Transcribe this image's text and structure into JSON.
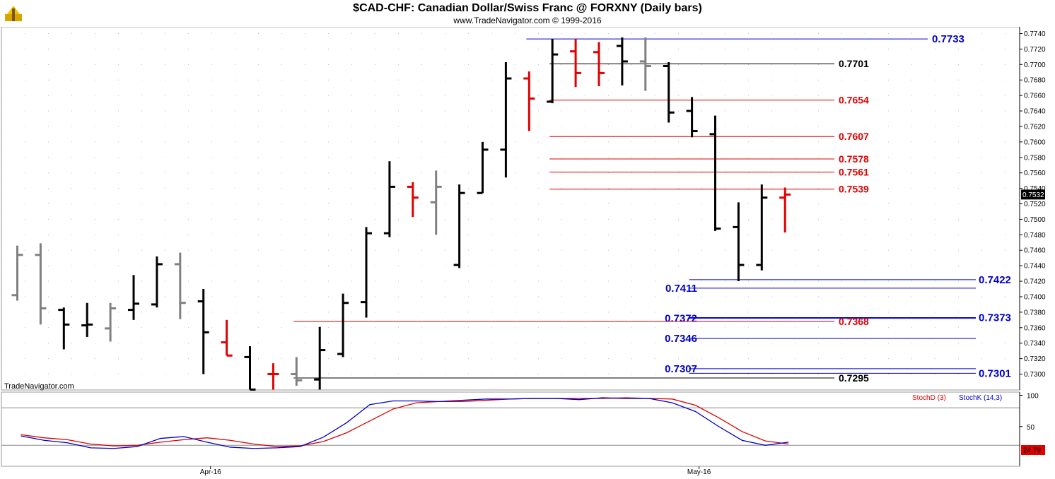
{
  "header": {
    "title": "$CAD-CHF:  Canadian Dollar/Swiss Franc @ FORXNY  (Daily bars)",
    "subtitle": "www.TradeNavigator.com © 1999-2016",
    "watermark": "TradeNavigator.com"
  },
  "colors": {
    "up": "#000000",
    "down": "#e00000",
    "neutral": "#808080",
    "blue": "#0000cc",
    "red": "#e00000",
    "black": "#000000"
  },
  "chart_data": [
    {
      "type": "bar",
      "subtype": "ohlc",
      "ylim": [
        0.728,
        0.775
      ],
      "yticks": [
        "0.7300",
        "0.7320",
        "0.7340",
        "0.7360",
        "0.7380",
        "0.7400",
        "0.7420",
        "0.7440",
        "0.7460",
        "0.7480",
        "0.7500",
        "0.7520",
        "0.7540",
        "0.7560",
        "0.7580",
        "0.7600",
        "0.7620",
        "0.7640",
        "0.7660",
        "0.7680",
        "0.7700",
        "0.7720",
        "0.7740"
      ],
      "last_price": "0.7532",
      "xlabels": [
        {
          "i": 8,
          "label": "Apr-16"
        },
        {
          "i": 29,
          "label": "May-16"
        }
      ],
      "bars": [
        {
          "o": 0.7402,
          "h": 0.7466,
          "l": 0.7395,
          "c": 0.7454,
          "color": "neutral"
        },
        {
          "o": 0.7454,
          "h": 0.7469,
          "l": 0.7364,
          "c": 0.7385,
          "color": "neutral"
        },
        {
          "o": 0.7383,
          "h": 0.7386,
          "l": 0.7332,
          "c": 0.7364,
          "color": "up"
        },
        {
          "o": 0.7363,
          "h": 0.7392,
          "l": 0.7348,
          "c": 0.7364,
          "color": "up"
        },
        {
          "o": 0.7359,
          "h": 0.7392,
          "l": 0.7342,
          "c": 0.7385,
          "color": "neutral"
        },
        {
          "o": 0.7383,
          "h": 0.7428,
          "l": 0.737,
          "c": 0.7391,
          "color": "up"
        },
        {
          "o": 0.739,
          "h": 0.7452,
          "l": 0.7386,
          "c": 0.7442,
          "color": "up"
        },
        {
          "o": 0.7442,
          "h": 0.7457,
          "l": 0.7371,
          "c": 0.7392,
          "color": "neutral"
        },
        {
          "o": 0.7394,
          "h": 0.741,
          "l": 0.73,
          "c": 0.7354,
          "color": "up"
        },
        {
          "o": 0.7341,
          "h": 0.737,
          "l": 0.7324,
          "c": 0.7324,
          "color": "down"
        },
        {
          "o": 0.7322,
          "h": 0.7336,
          "l": 0.728,
          "c": 0.728,
          "color": "up"
        },
        {
          "o": 0.73,
          "h": 0.7314,
          "l": 0.728,
          "c": 0.73,
          "color": "down"
        },
        {
          "o": 0.73,
          "h": 0.7322,
          "l": 0.7285,
          "c": 0.7292,
          "color": "neutral"
        },
        {
          "o": 0.7293,
          "h": 0.7361,
          "l": 0.728,
          "c": 0.7331,
          "color": "up"
        },
        {
          "o": 0.7326,
          "h": 0.7404,
          "l": 0.7322,
          "c": 0.7392,
          "color": "up"
        },
        {
          "o": 0.7393,
          "h": 0.749,
          "l": 0.7373,
          "c": 0.7482,
          "color": "up"
        },
        {
          "o": 0.7482,
          "h": 0.7575,
          "l": 0.7477,
          "c": 0.7542,
          "color": "up"
        },
        {
          "o": 0.7542,
          "h": 0.7548,
          "l": 0.7503,
          "c": 0.7528,
          "color": "down"
        },
        {
          "o": 0.7522,
          "h": 0.7563,
          "l": 0.748,
          "c": 0.7542,
          "color": "neutral"
        },
        {
          "o": 0.7441,
          "h": 0.7545,
          "l": 0.7437,
          "c": 0.7534,
          "color": "up"
        },
        {
          "o": 0.7534,
          "h": 0.76,
          "l": 0.7534,
          "c": 0.759,
          "color": "up"
        },
        {
          "o": 0.759,
          "h": 0.7703,
          "l": 0.7554,
          "c": 0.7682,
          "color": "up"
        },
        {
          "o": 0.7682,
          "h": 0.7691,
          "l": 0.7614,
          "c": 0.7656,
          "color": "down"
        },
        {
          "o": 0.7652,
          "h": 0.7733,
          "l": 0.765,
          "c": 0.7713,
          "color": "up"
        },
        {
          "o": 0.7717,
          "h": 0.7733,
          "l": 0.7671,
          "c": 0.7689,
          "color": "down"
        },
        {
          "o": 0.7716,
          "h": 0.7729,
          "l": 0.7672,
          "c": 0.7689,
          "color": "down"
        },
        {
          "o": 0.7724,
          "h": 0.7735,
          "l": 0.7673,
          "c": 0.7704,
          "color": "up"
        },
        {
          "o": 0.7704,
          "h": 0.7735,
          "l": 0.7666,
          "c": 0.7698,
          "color": "neutral"
        },
        {
          "o": 0.7698,
          "h": 0.7703,
          "l": 0.7625,
          "c": 0.7638,
          "color": "up"
        },
        {
          "o": 0.764,
          "h": 0.7658,
          "l": 0.7606,
          "c": 0.7614,
          "color": "up"
        },
        {
          "o": 0.761,
          "h": 0.7634,
          "l": 0.7485,
          "c": 0.7488,
          "color": "up"
        },
        {
          "o": 0.749,
          "h": 0.7522,
          "l": 0.742,
          "c": 0.7441,
          "color": "up"
        },
        {
          "o": 0.7441,
          "h": 0.7545,
          "l": 0.7434,
          "c": 0.7528,
          "color": "up"
        },
        {
          "o": 0.7528,
          "h": 0.7541,
          "l": 0.7483,
          "c": 0.7532,
          "color": "down"
        }
      ],
      "levels": [
        {
          "value": 0.7733,
          "label": "0.7733",
          "color": "blue",
          "from_bar": 22,
          "side": "right-far"
        },
        {
          "value": 0.7701,
          "label": "0.7701",
          "color": "black",
          "from_bar": 23,
          "side": "right"
        },
        {
          "value": 0.7654,
          "label": "0.7654",
          "color": "red",
          "from_bar": 23,
          "side": "right"
        },
        {
          "value": 0.7607,
          "label": "0.7607",
          "color": "red",
          "from_bar": 23,
          "side": "right"
        },
        {
          "value": 0.7578,
          "label": "0.7578",
          "color": "red",
          "from_bar": 23,
          "side": "right"
        },
        {
          "value": 0.7561,
          "label": "0.7561",
          "color": "red",
          "from_bar": 23,
          "side": "right"
        },
        {
          "value": 0.7539,
          "label": "0.7539",
          "color": "red",
          "from_bar": 23,
          "side": "right"
        },
        {
          "value": 0.7422,
          "label": "0.7422",
          "color": "blue",
          "from_bar": 29,
          "side": "right-far"
        },
        {
          "value": 0.7411,
          "label": "0.7411",
          "color": "blue",
          "from_bar": 29,
          "side": "left"
        },
        {
          "value": 0.7373,
          "label": "0.7373",
          "color": "blue",
          "from_bar": 29,
          "side": "right-far"
        },
        {
          "value": 0.7372,
          "label": "0.7372",
          "color": "blue",
          "from_bar": 29,
          "side": "left"
        },
        {
          "value": 0.7368,
          "label": "0.7368",
          "color": "red",
          "from_bar": 12,
          "side": "right"
        },
        {
          "value": 0.7346,
          "label": "0.7346",
          "color": "blue",
          "from_bar": 29,
          "side": "left"
        },
        {
          "value": 0.7307,
          "label": "0.7307",
          "color": "blue",
          "from_bar": 29,
          "side": "left"
        },
        {
          "value": 0.7301,
          "label": "0.7301",
          "color": "blue",
          "from_bar": 29,
          "side": "right-far"
        },
        {
          "value": 0.7295,
          "label": "0.7295",
          "color": "black",
          "from_bar": 12,
          "side": "right"
        }
      ]
    },
    {
      "type": "line",
      "ylim": [
        0,
        100
      ],
      "yticks": [
        "100",
        "50"
      ],
      "reference_lines": [
        80,
        20
      ],
      "last_value": "24.79",
      "series": [
        {
          "name": "StochD (3)",
          "color": "red",
          "values": [
            37,
            32,
            29,
            22,
            19,
            20,
            25,
            29,
            32,
            28,
            22,
            18,
            19,
            26,
            40,
            59,
            78,
            88,
            90,
            90,
            92,
            94,
            95,
            95,
            95,
            95,
            96,
            95,
            94,
            84,
            64,
            42,
            27,
            22
          ]
        },
        {
          "name": "StochK (14,3)",
          "color": "blue",
          "values": [
            35,
            28,
            24,
            16,
            15,
            18,
            31,
            34,
            25,
            17,
            15,
            16,
            18,
            33,
            56,
            85,
            91,
            91,
            90,
            92,
            94,
            94,
            95,
            95,
            93,
            96,
            95,
            95,
            88,
            74,
            50,
            28,
            20,
            25
          ]
        }
      ]
    }
  ]
}
